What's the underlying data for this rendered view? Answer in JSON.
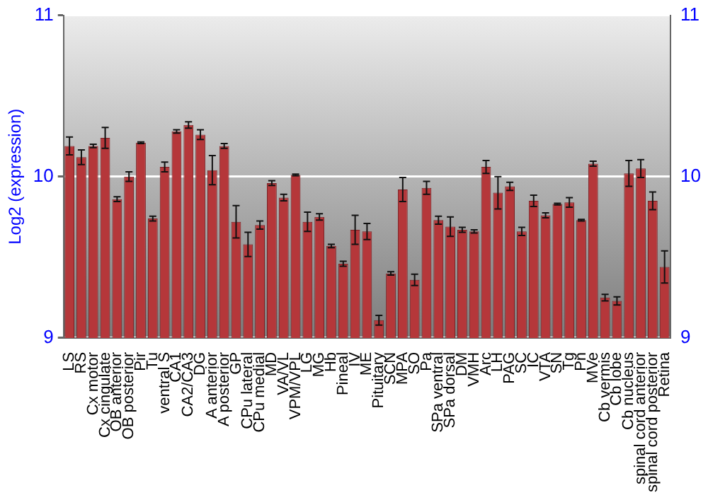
{
  "chart_data": {
    "type": "bar",
    "ylabel": "Log2 (expression)",
    "categories": [
      "LS",
      "RS",
      "Cx motor",
      "Cx cingulate",
      "OB anterior",
      "OB posterior",
      "Pir",
      "Tu",
      "ventral S",
      "CA1",
      "CA2/CA3",
      "DG",
      "A anterior",
      "A posterior",
      "GP",
      "CPu lateral",
      "CPu medial",
      "MD",
      "VA/VL",
      "VPM/VPL",
      "LG",
      "MG",
      "Hb",
      "Pineal",
      "IV",
      "ME",
      "Pituitary",
      "SCN",
      "MPA",
      "SO",
      "Pa",
      "SPa ventral",
      "SPa dorsal",
      "DM",
      "VMH",
      "Arc",
      "LH",
      "PAG",
      "SC",
      "IC",
      "VTA",
      "SN",
      "Tg",
      "Pn",
      "MVe",
      "Cb vermis",
      "Cb lobe",
      "Cb nucleus",
      "spinal cord anterior",
      "spinal cord posterior",
      "Retina"
    ],
    "values": [
      10.19,
      10.12,
      10.19,
      10.24,
      9.86,
      10.0,
      10.21,
      9.74,
      10.06,
      10.28,
      10.32,
      10.26,
      10.04,
      10.19,
      9.72,
      9.58,
      9.7,
      9.96,
      9.87,
      10.01,
      9.72,
      9.75,
      9.57,
      9.46,
      9.67,
      9.66,
      9.11,
      9.4,
      9.92,
      9.36,
      9.93,
      9.73,
      9.69,
      9.67,
      9.66,
      10.06,
      9.9,
      9.94,
      9.66,
      9.85,
      9.76,
      9.83,
      9.84,
      9.73,
      10.08,
      9.25,
      9.23,
      10.02,
      10.05,
      9.85,
      9.44
    ],
    "errors": [
      0.055,
      0.045,
      0.01,
      0.065,
      0.015,
      0.03,
      0.005,
      0.015,
      0.03,
      0.01,
      0.02,
      0.03,
      0.09,
      0.015,
      0.1,
      0.075,
      0.025,
      0.015,
      0.02,
      0.005,
      0.06,
      0.02,
      0.01,
      0.015,
      0.09,
      0.05,
      0.03,
      0.01,
      0.075,
      0.035,
      0.04,
      0.025,
      0.06,
      0.015,
      0.01,
      0.04,
      0.1,
      0.025,
      0.025,
      0.035,
      0.015,
      0.005,
      0.03,
      0.005,
      0.015,
      0.02,
      0.025,
      0.08,
      0.055,
      0.055,
      0.1
    ],
    "color": "#b5373a",
    "ylim": [
      9,
      11
    ],
    "yticks": [
      9,
      10,
      11
    ],
    "y2lim": [
      9,
      11
    ],
    "y2ticks": [
      9,
      10,
      11
    ],
    "grid": "y"
  }
}
